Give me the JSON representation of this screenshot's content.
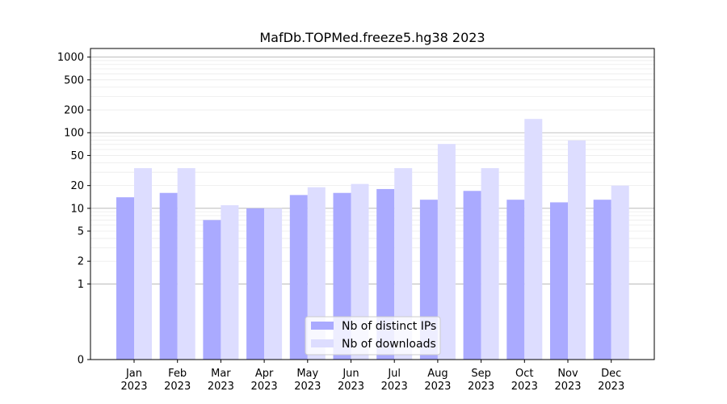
{
  "chart_data": {
    "type": "bar",
    "title": "MafDb.TOPMed.freeze5.hg38 2023",
    "xlabel": "",
    "ylabel": "",
    "yscale": "symlog",
    "ylim": [
      0,
      1300
    ],
    "y_ticks": [
      0,
      1,
      2,
      5,
      10,
      20,
      50,
      100,
      200,
      500,
      1000
    ],
    "y_tick_labels": [
      "0",
      "1",
      "2",
      "5",
      "10",
      "20",
      "50",
      "100",
      "200",
      "500",
      "1000"
    ],
    "grid": true,
    "legend_position": "bottom-center",
    "categories": [
      {
        "month": "Jan",
        "year": "2023"
      },
      {
        "month": "Feb",
        "year": "2023"
      },
      {
        "month": "Mar",
        "year": "2023"
      },
      {
        "month": "Apr",
        "year": "2023"
      },
      {
        "month": "May",
        "year": "2023"
      },
      {
        "month": "Jun",
        "year": "2023"
      },
      {
        "month": "Jul",
        "year": "2023"
      },
      {
        "month": "Aug",
        "year": "2023"
      },
      {
        "month": "Sep",
        "year": "2023"
      },
      {
        "month": "Oct",
        "year": "2023"
      },
      {
        "month": "Nov",
        "year": "2023"
      },
      {
        "month": "Dec",
        "year": "2023"
      }
    ],
    "series": [
      {
        "name": "Nb of distinct IPs",
        "color": "#aaaaff",
        "values": [
          14,
          16,
          7,
          10,
          15,
          16,
          18,
          13,
          17,
          13,
          12,
          13
        ]
      },
      {
        "name": "Nb of downloads",
        "color": "#ddddff",
        "values": [
          34,
          34,
          11,
          10,
          19,
          21,
          34,
          71,
          34,
          152,
          79,
          20
        ]
      }
    ]
  }
}
